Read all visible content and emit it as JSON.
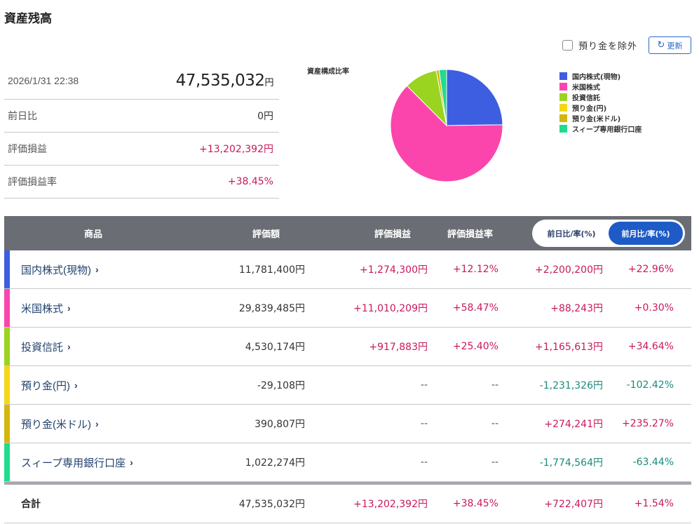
{
  "page": {
    "title": "資産残高"
  },
  "controls": {
    "exclude_label": "預り金を除外",
    "refresh_label": "更新"
  },
  "summary": {
    "datetime": "2026/1/31 22:38",
    "total_value": "47,535,032",
    "yen": "円",
    "rows": [
      {
        "label": "前日比",
        "value": "0円",
        "tone": ""
      },
      {
        "label": "評価損益",
        "value": "+13,202,392円",
        "tone": "pos"
      },
      {
        "label": "評価損益率",
        "value": "+38.45%",
        "tone": "pos"
      }
    ]
  },
  "chart_data": {
    "type": "pie",
    "title": "資産構成比率",
    "legend_position": "right",
    "slices": [
      {
        "label": "国内株式(現物)",
        "value": 11781400,
        "color": "#3d5ee0"
      },
      {
        "label": "米国株式",
        "value": 29839485,
        "color": "#fb45ad"
      },
      {
        "label": "投資信託",
        "value": 4530174,
        "color": "#9ad420"
      },
      {
        "label": "預り金(円)",
        "value": 0,
        "color": "#f4d719"
      },
      {
        "label": "預り金(米ドル)",
        "value": 390807,
        "color": "#d4b60d"
      },
      {
        "label": "スィープ専用銀行口座",
        "value": 1022274,
        "color": "#1fdc8c"
      }
    ]
  },
  "table": {
    "headers": {
      "product": "商品",
      "value": "評価額",
      "pl": "評価損益",
      "pl_rate": "評価損益率",
      "toggle_day": "前日比/率(%)",
      "toggle_month": "前月比/率(%)"
    },
    "rows": [
      {
        "name": "国内株式(現物)",
        "color": "#3d5ee0",
        "value": "11,781,400円",
        "pl": "+1,274,300円",
        "pl_tone": "pos",
        "pl_rate": "+12.12%",
        "pl_rate_tone": "pos",
        "diff": "+2,200,200円",
        "diff_tone": "pos",
        "diff_rate": "+22.96%",
        "diff_rate_tone": "pos"
      },
      {
        "name": "米国株式",
        "color": "#fb45ad",
        "value": "29,839,485円",
        "pl": "+11,010,209円",
        "pl_tone": "pos",
        "pl_rate": "+58.47%",
        "pl_rate_tone": "pos",
        "diff": "+88,243円",
        "diff_tone": "pos",
        "diff_rate": "+0.30%",
        "diff_rate_tone": "pos"
      },
      {
        "name": "投資信託",
        "color": "#9ad420",
        "value": "4,530,174円",
        "pl": "+917,883円",
        "pl_tone": "pos",
        "pl_rate": "+25.40%",
        "pl_rate_tone": "pos",
        "diff": "+1,165,613円",
        "diff_tone": "pos",
        "diff_rate": "+34.64%",
        "diff_rate_tone": "pos"
      },
      {
        "name": "預り金(円)",
        "color": "#f4d719",
        "value": "-29,108円",
        "pl": "--",
        "pl_tone": "dash",
        "pl_rate": "--",
        "pl_rate_tone": "dash",
        "diff": "-1,231,326円",
        "diff_tone": "neg",
        "diff_rate": "-102.42%",
        "diff_rate_tone": "neg"
      },
      {
        "name": "預り金(米ドル)",
        "color": "#d4b60d",
        "value": "390,807円",
        "pl": "--",
        "pl_tone": "dash",
        "pl_rate": "--",
        "pl_rate_tone": "dash",
        "diff": "+274,241円",
        "diff_tone": "pos",
        "diff_rate": "+235.27%",
        "diff_rate_tone": "pos"
      },
      {
        "name": "スィープ専用銀行口座",
        "color": "#1fdc8c",
        "value": "1,022,274円",
        "pl": "--",
        "pl_tone": "dash",
        "pl_rate": "--",
        "pl_rate_tone": "dash",
        "diff": "-1,774,564円",
        "diff_tone": "neg",
        "diff_rate": "-63.44%",
        "diff_rate_tone": "neg"
      }
    ],
    "total": {
      "label": "合計",
      "value": "47,535,032円",
      "pl": "+13,202,392円",
      "pl_rate": "+38.45%",
      "diff": "+722,407円",
      "diff_rate": "+1.54%"
    }
  },
  "colors": {
    "positive": "#c8195d",
    "negative": "#1a8a7d",
    "accent": "#1e5bc6",
    "header_bg": "#6a6d73"
  }
}
